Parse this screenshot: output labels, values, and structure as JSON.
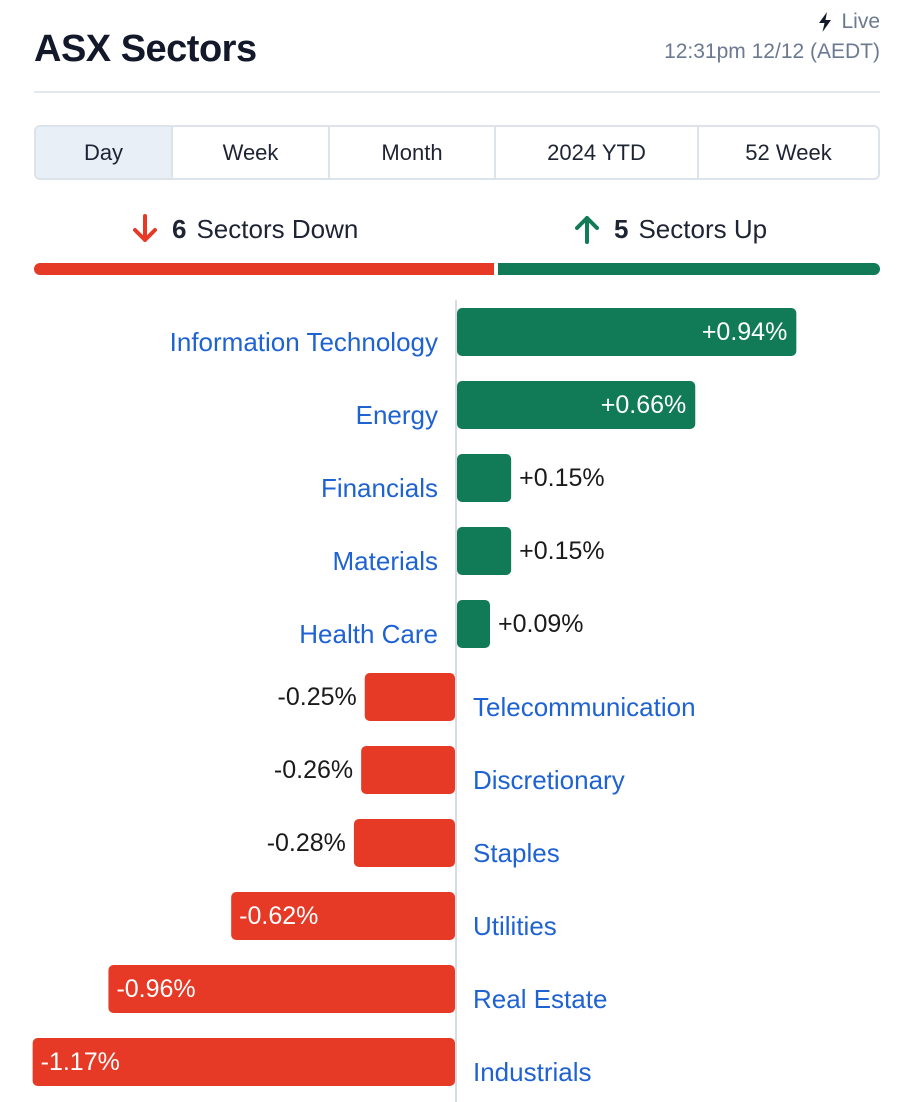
{
  "header": {
    "title": "ASX Sectors",
    "live_label": "Live",
    "live_icon": "lightning-bolt-icon",
    "timestamp": "12:31pm 12/12 (AEDT)"
  },
  "tabs": [
    {
      "label": "Day",
      "active": true
    },
    {
      "label": "Week",
      "active": false
    },
    {
      "label": "Month",
      "active": false
    },
    {
      "label": "2024 YTD",
      "active": false
    },
    {
      "label": "52 Week",
      "active": false
    }
  ],
  "summary": {
    "down_count": "6",
    "down_label": "Sectors Down",
    "down_icon": "arrow-down-icon",
    "up_count": "5",
    "up_label": "Sectors Up",
    "up_icon": "arrow-up-icon"
  },
  "colors": {
    "positive": "#117a57",
    "negative": "#e63a27",
    "label": "#1f62d1",
    "text": "#1a1a1a"
  },
  "chart_data": {
    "type": "bar",
    "orientation": "horizontal",
    "categories": [
      "Information Technology",
      "Energy",
      "Financials",
      "Materials",
      "Health Care",
      "Telecommunication",
      "Discretionary",
      "Staples",
      "Utilities",
      "Real Estate",
      "Industrials"
    ],
    "values": [
      0.94,
      0.66,
      0.15,
      0.15,
      0.09,
      -0.25,
      -0.26,
      -0.28,
      -0.62,
      -0.96,
      -1.17
    ],
    "value_labels": [
      "+0.94%",
      "+0.66%",
      "+0.15%",
      "+0.15%",
      "+0.09%",
      "-0.25%",
      "-0.26%",
      "-0.28%",
      "-0.62%",
      "-0.96%",
      "-1.17%"
    ],
    "unit": "%"
  }
}
